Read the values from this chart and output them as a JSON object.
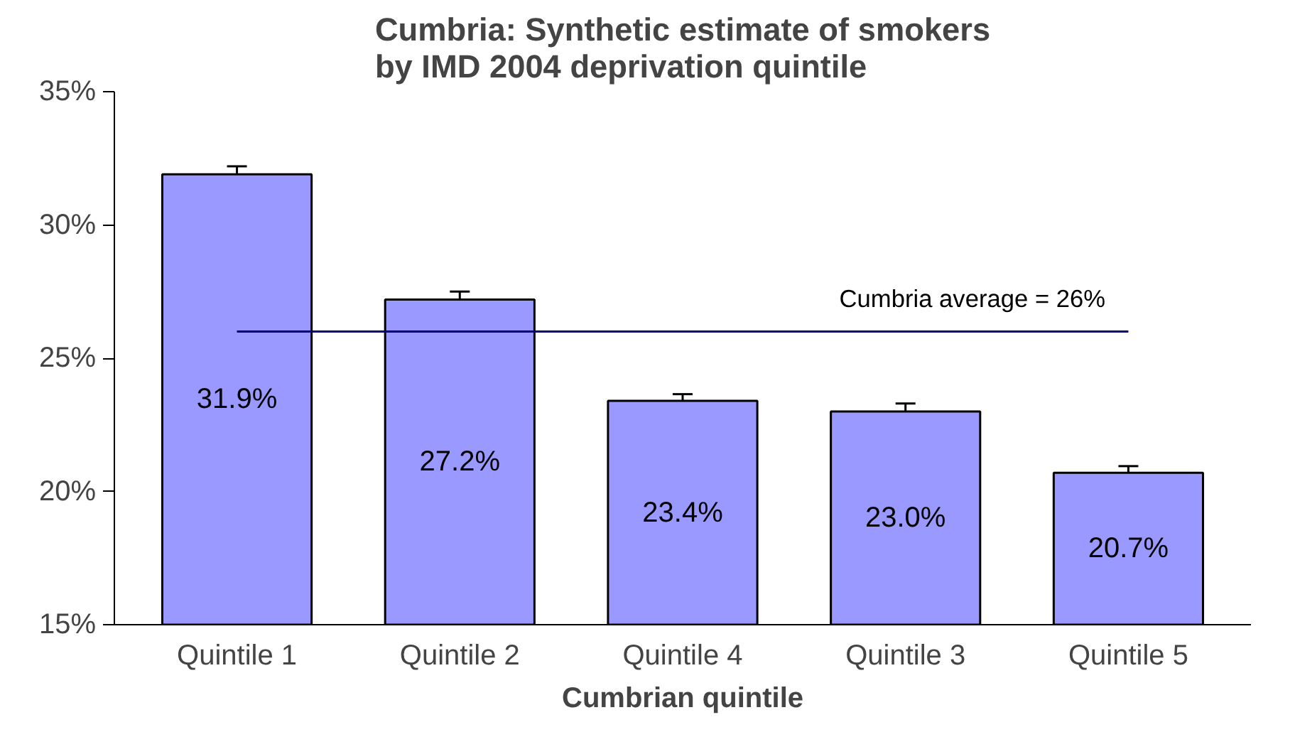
{
  "chart_data": {
    "type": "bar",
    "title": "Cumbria: Synthetic estimate of smokers\nby IMD 2004 deprivation quintile",
    "xlabel": "Cumbrian quintile",
    "categories": [
      "Quintile 1",
      "Quintile 2",
      "Quintile 4",
      "Quintile 3",
      "Quintile 5"
    ],
    "values": [
      31.9,
      27.2,
      23.4,
      23.0,
      20.7
    ],
    "value_labels": [
      "31.9%",
      "27.2%",
      "23.4%",
      "23.0%",
      "20.7%"
    ],
    "errors": [
      0.3,
      0.3,
      0.25,
      0.3,
      0.25
    ],
    "color": "#9999ff",
    "ylim": [
      15,
      35
    ],
    "yticks": [
      {
        "value": 15,
        "label": "15%"
      },
      {
        "value": 20,
        "label": "20%"
      },
      {
        "value": 25,
        "label": "25%"
      },
      {
        "value": 30,
        "label": "30%"
      },
      {
        "value": 35,
        "label": "35%"
      }
    ],
    "ref_lines": [
      {
        "axis": "y",
        "value": 26,
        "label": "Cumbria average = 26%",
        "color": "#000080"
      }
    ],
    "grid": false
  }
}
